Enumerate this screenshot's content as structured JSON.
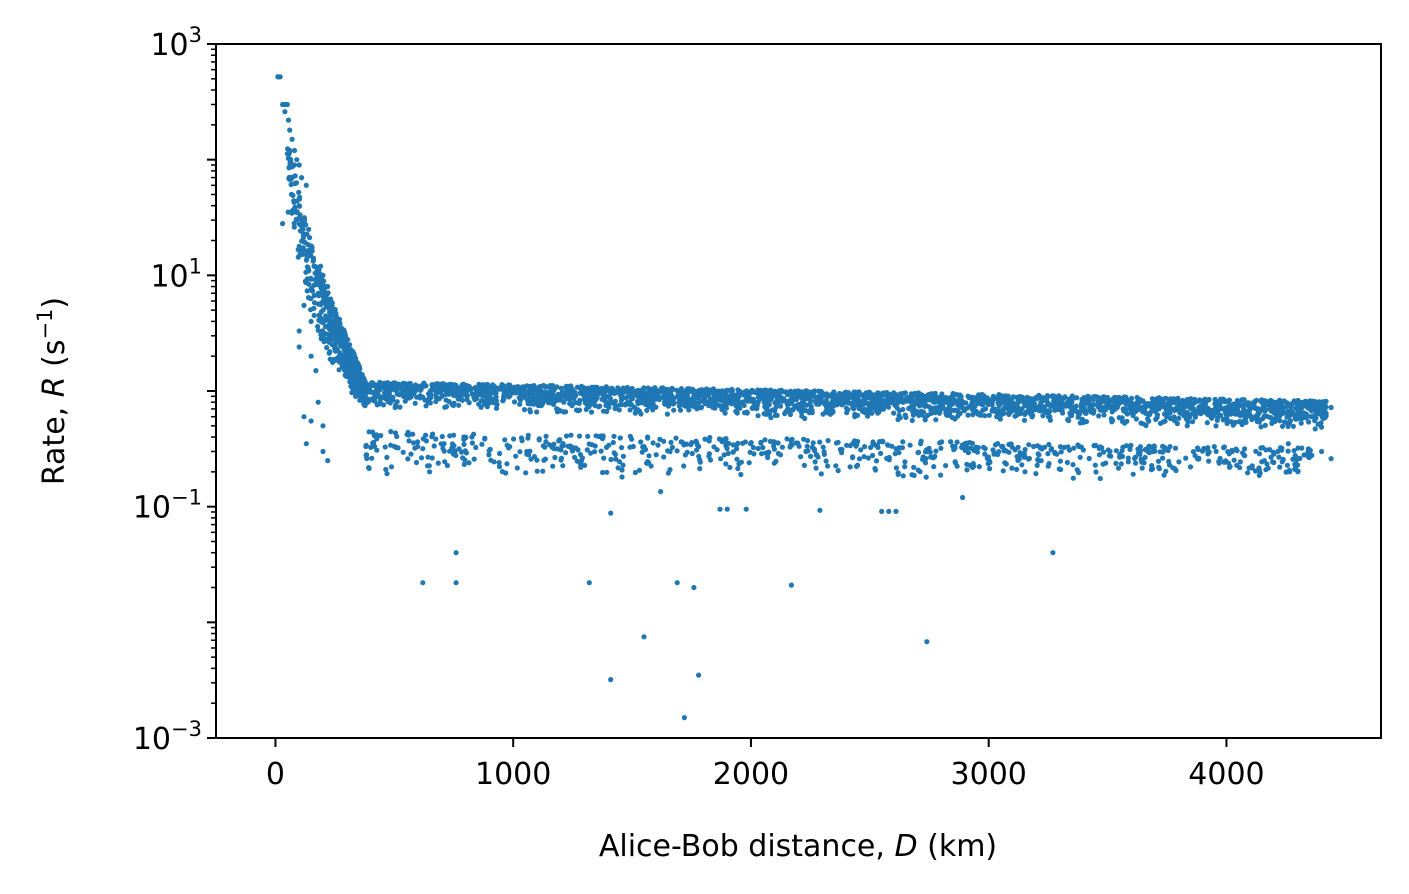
{
  "chart_data": {
    "type": "scatter",
    "x_scale": "linear",
    "y_scale": "log",
    "xlim": [
      -250,
      4650
    ],
    "ylim": [
      0.001,
      1000
    ],
    "grid": false,
    "marker_color": "#1f77b4",
    "x_ticks": [
      0,
      1000,
      2000,
      3000,
      4000
    ],
    "x_tick_labels": [
      "0",
      "1000",
      "2000",
      "3000",
      "4000"
    ],
    "y_ticks": [
      {
        "value": 0.001,
        "base": "10",
        "exp": "−3"
      },
      {
        "value": 0.1,
        "base": "10",
        "exp": "−1"
      },
      {
        "value": 10,
        "base": "10",
        "exp": "1"
      },
      {
        "value": 1000,
        "base": "10",
        "exp": "3"
      }
    ],
    "xlabel": {
      "text": "Alice-Bob distance, ",
      "symbol": "D",
      "unit": " (km)"
    },
    "ylabel": {
      "text": "Rate, ",
      "symbol": "R",
      "unit_open": " (s",
      "unit_exp": "−1",
      "unit_close": ")"
    },
    "sparse_points": [
      [
        10,
        520
      ],
      [
        15,
        520
      ],
      [
        20,
        520
      ],
      [
        30,
        300
      ],
      [
        35,
        300
      ],
      [
        40,
        260
      ],
      [
        45,
        300
      ],
      [
        50,
        300
      ],
      [
        55,
        220
      ],
      [
        60,
        180
      ],
      [
        70,
        150
      ],
      [
        80,
        120
      ],
      [
        90,
        100
      ],
      [
        100,
        90
      ],
      [
        110,
        70
      ],
      [
        130,
        60
      ],
      [
        60,
        120
      ],
      [
        80,
        90
      ],
      [
        100,
        40
      ],
      [
        120,
        30
      ],
      [
        30,
        28
      ],
      [
        140,
        25
      ],
      [
        160,
        14
      ],
      [
        170,
        9
      ],
      [
        180,
        7
      ],
      [
        190,
        12
      ],
      [
        200,
        10
      ],
      [
        210,
        6
      ],
      [
        220,
        8
      ],
      [
        240,
        4
      ],
      [
        260,
        3
      ],
      [
        280,
        2.5
      ],
      [
        300,
        2
      ],
      [
        320,
        1.6
      ],
      [
        340,
        1.3
      ],
      [
        360,
        1.1
      ],
      [
        120,
        0.6
      ],
      [
        150,
        0.55
      ],
      [
        200,
        0.5
      ],
      [
        170,
        1.5
      ],
      [
        150,
        2.0
      ],
      [
        100,
        2.4
      ],
      [
        100,
        3.3
      ],
      [
        120,
        5.5
      ],
      [
        150,
        4.0
      ],
      [
        130,
        0.35
      ],
      [
        200,
        0.3
      ],
      [
        220,
        0.25
      ],
      [
        180,
        0.8
      ],
      [
        1410,
        0.088
      ],
      [
        1620,
        0.135
      ],
      [
        1870,
        0.095
      ],
      [
        1900,
        0.095
      ],
      [
        1980,
        0.095
      ],
      [
        2290,
        0.093
      ],
      [
        2550,
        0.091
      ],
      [
        2580,
        0.091
      ],
      [
        2610,
        0.091
      ],
      [
        2890,
        0.12
      ],
      [
        760,
        0.04
      ],
      [
        3270,
        0.04
      ],
      [
        620,
        0.022
      ],
      [
        760,
        0.022
      ],
      [
        1320,
        0.022
      ],
      [
        1690,
        0.022
      ],
      [
        1760,
        0.02
      ],
      [
        2170,
        0.021
      ],
      [
        1550,
        0.0075
      ],
      [
        2740,
        0.0068
      ],
      [
        1410,
        0.0032
      ],
      [
        1780,
        0.0035
      ],
      [
        1720,
        0.0015
      ],
      [
        4350,
        0.75
      ],
      [
        4440,
        0.72
      ],
      [
        4400,
        0.3
      ],
      [
        4440,
        0.26
      ],
      [
        4300,
        0.2
      ],
      [
        4260,
        0.35
      ]
    ],
    "trend_bands": [
      {
        "d_start": 380,
        "d_end": 4420,
        "upper": [
          1.2,
          0.82
        ],
        "lower": [
          0.7,
          0.45
        ],
        "count": 2600
      },
      {
        "d_start": 380,
        "d_end": 4380,
        "upper": [
          0.45,
          0.32
        ],
        "lower": [
          0.17,
          0.17
        ],
        "count": 750
      },
      {
        "d_start": 170,
        "d_end": 380,
        "upper": [
          13,
          1.2
        ],
        "lower": [
          2.5,
          0.6
        ],
        "count": 450
      },
      {
        "d_start": 50,
        "d_end": 170,
        "upper": [
          150,
          13
        ],
        "lower": [
          30,
          2.5
        ],
        "count": 120
      }
    ]
  }
}
